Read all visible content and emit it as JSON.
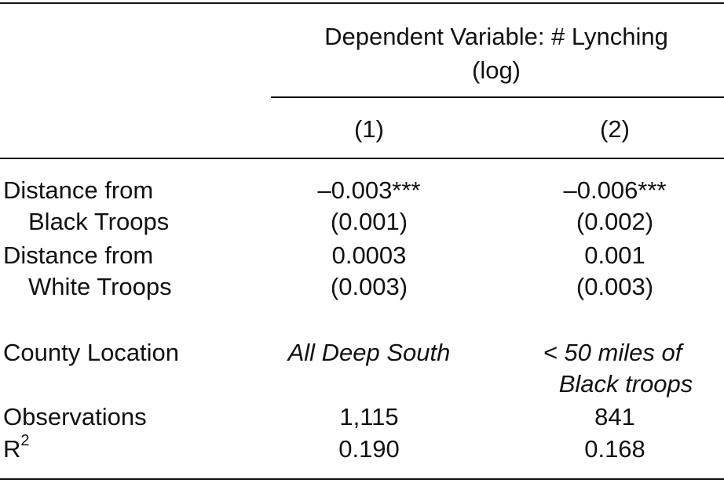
{
  "table": {
    "header": {
      "lines": [
        "Dependent Variable: # Lynching",
        "(log)"
      ]
    },
    "columns": [
      "(1)",
      "(2)"
    ],
    "rows": [
      {
        "label": "Distance from",
        "cells": [
          "–0.003***",
          "–0.006***"
        ]
      },
      {
        "label": "Black Troops",
        "cells": [
          "(0.001)",
          "(0.002)"
        ]
      },
      {
        "label": "Distance from",
        "cells": [
          "0.0003",
          "0.001"
        ]
      },
      {
        "label": "White Troops",
        "cells": [
          "(0.003)",
          "(0.003)"
        ]
      },
      {
        "label": "County Location",
        "cells": [
          [
            "All Deep South"
          ],
          [
            "< 50 miles of",
            "Black troops"
          ]
        ]
      },
      {
        "label": "Observations",
        "cells": [
          "1,115",
          "841"
        ]
      },
      {
        "label": {
          "base": "R",
          "superscript": "2"
        },
        "cells": [
          "0.190",
          "0.168"
        ]
      }
    ]
  }
}
